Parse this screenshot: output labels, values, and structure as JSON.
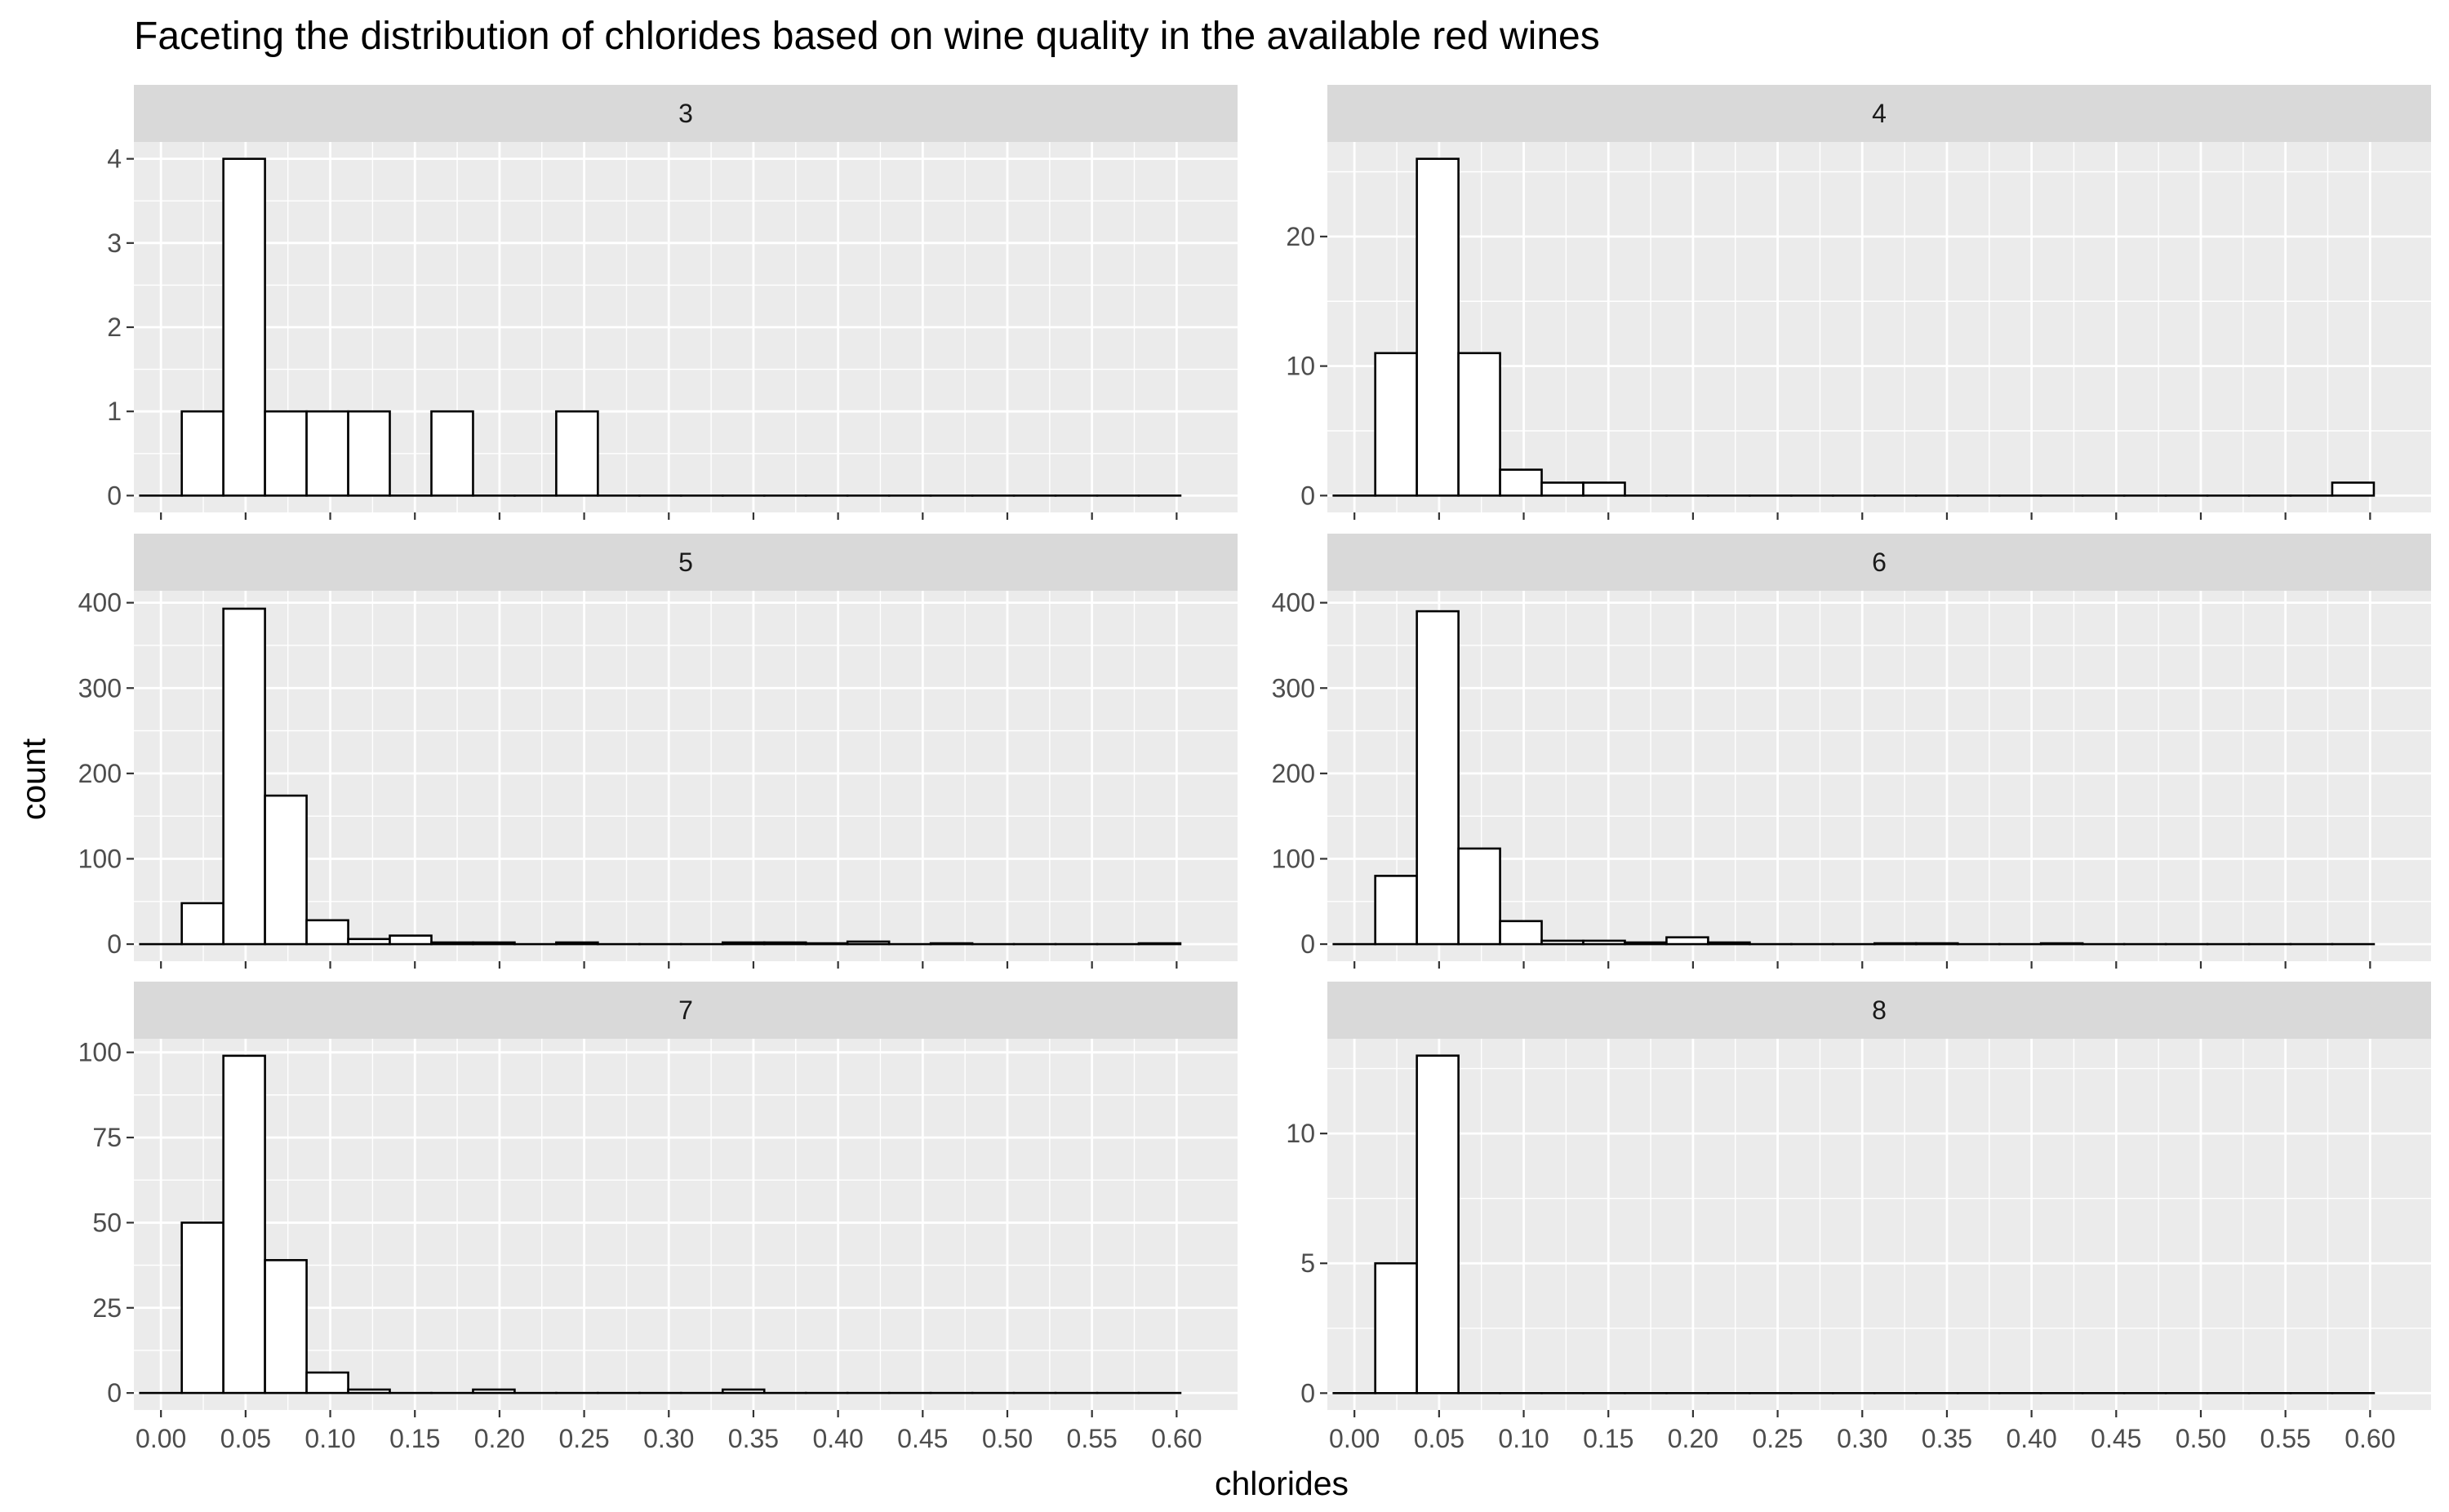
{
  "chart_data": {
    "type": "bar",
    "title": "Faceting the distribution of chlorides based on wine quality in the available red wines",
    "xlabel": "chlorides",
    "ylabel": "count",
    "x_ticks": [
      "0.00",
      "0.05",
      "0.10",
      "0.15",
      "0.20",
      "0.25",
      "0.30",
      "0.35",
      "0.40",
      "0.45",
      "0.50",
      "0.55",
      "0.60"
    ],
    "xlim": [
      -0.016,
      0.636
    ],
    "bin_start": 0.0,
    "bin_width": 0.02458,
    "bin_count": 25,
    "bar_fill": "#ffffff",
    "bar_outline": "#000000",
    "panel_background": "#ebebeb",
    "strip_background": "#d9d9d9",
    "grid": true,
    "panels": [
      {
        "label": "3",
        "ylim": [
          -0.2,
          4.2
        ],
        "y_ticks": [
          0,
          1,
          2,
          3,
          4
        ],
        "values": [
          0,
          1,
          4,
          1,
          1,
          1,
          0,
          1,
          0,
          0,
          1,
          0,
          0,
          0,
          0,
          0,
          0,
          0,
          0,
          0,
          0,
          0,
          0,
          0,
          0
        ]
      },
      {
        "label": "4",
        "ylim": [
          -1.3,
          27.3
        ],
        "y_ticks": [
          0,
          10,
          20
        ],
        "values": [
          0,
          11,
          26,
          11,
          2,
          1,
          1,
          0,
          0,
          0,
          0,
          0,
          0,
          0,
          0,
          0,
          0,
          0,
          0,
          0,
          0,
          0,
          0,
          0,
          1
        ]
      },
      {
        "label": "5",
        "ylim": [
          -20,
          414
        ],
        "y_ticks": [
          0,
          100,
          200,
          300,
          400
        ],
        "values": [
          0,
          48,
          393,
          174,
          28,
          6,
          10,
          2,
          2,
          0,
          2,
          0,
          0,
          0,
          2,
          2,
          1,
          3,
          0,
          1,
          0,
          0,
          0,
          0,
          1
        ]
      },
      {
        "label": "6",
        "ylim": [
          -20,
          414
        ],
        "y_ticks": [
          0,
          100,
          200,
          300,
          400
        ],
        "values": [
          0,
          80,
          390,
          112,
          27,
          4,
          4,
          2,
          8,
          2,
          0,
          0,
          0,
          1,
          1,
          0,
          0,
          1,
          0,
          0,
          0,
          0,
          0,
          0,
          0
        ]
      },
      {
        "label": "7",
        "ylim": [
          -5,
          104
        ],
        "y_ticks": [
          0,
          25,
          50,
          75,
          100
        ],
        "values": [
          0,
          50,
          99,
          39,
          6,
          1,
          0,
          0,
          1,
          0,
          0,
          0,
          0,
          0,
          1,
          0,
          0,
          0,
          0,
          0,
          0,
          0,
          0,
          0,
          0
        ]
      },
      {
        "label": "8",
        "ylim": [
          -0.65,
          13.65
        ],
        "y_ticks": [
          0,
          5,
          10
        ],
        "values": [
          0,
          5,
          13,
          0,
          0,
          0,
          0,
          0,
          0,
          0,
          0,
          0,
          0,
          0,
          0,
          0,
          0,
          0,
          0,
          0,
          0,
          0,
          0,
          0,
          0
        ]
      }
    ]
  }
}
